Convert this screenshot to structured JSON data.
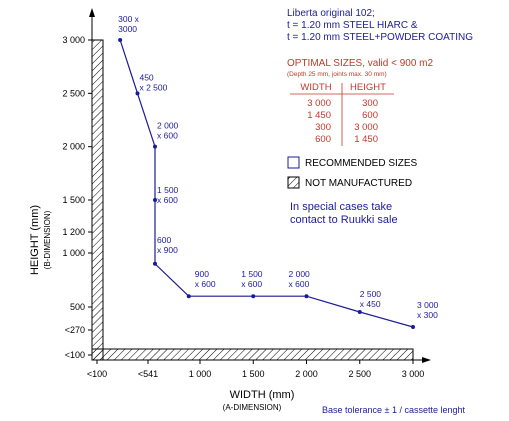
{
  "spec": {
    "lines": [
      "Liberta original 102;",
      "t = 1.20 mm STEEL HIARC &",
      "t = 1.20 mm STEEL+POWDER COATING"
    ]
  },
  "optimal": {
    "title": "OPTIMAL SIZES, valid < 900 m2",
    "note": "(Depth 25 mm, joints max. 30 mm)",
    "headers": [
      "WIDTH",
      "HEIGHT"
    ],
    "rows": [
      [
        "3 000",
        "300"
      ],
      [
        "1 450",
        "600"
      ],
      [
        "300",
        "3 000"
      ],
      [
        "600",
        "1 450"
      ]
    ]
  },
  "legend": {
    "recommended": "RECOMMENDED SIZES",
    "not_manufactured": "NOT MANUFACTURED"
  },
  "special": [
    "In special cases take",
    "contact to Ruukki sale"
  ],
  "tolerance": "Base tolerance ± 1 / cassette lenght",
  "colors": {
    "line": "#1b1b9a",
    "optimal": "#c0392b",
    "axis": "#000000"
  },
  "chart_data": {
    "type": "line",
    "xlabel": "WIDTH (mm)",
    "xlabel_sub": "(A-DIMENSION)",
    "ylabel": "HEIGHT (mm)",
    "ylabel_sub": "(B-DIMENSION)",
    "x_ticks": [
      {
        "label": "<100",
        "value": 100
      },
      {
        "label": "<541",
        "value": 541
      },
      {
        "label": "1 000",
        "value": 1000
      },
      {
        "label": "1 500",
        "value": 1500
      },
      {
        "label": "2 000",
        "value": 2000
      },
      {
        "label": "2 500",
        "value": 2500
      },
      {
        "label": "3 000",
        "value": 3000
      }
    ],
    "y_ticks": [
      {
        "label": "3 000",
        "value": 3000
      },
      {
        "label": "2 500",
        "value": 2500
      },
      {
        "label": "2 000",
        "value": 2000
      },
      {
        "label": "1 500",
        "value": 1500
      },
      {
        "label": "1 200",
        "value": 1200
      },
      {
        "label": "1 000",
        "value": 1000
      },
      {
        "label": "500",
        "value": 500
      },
      {
        "label": "<270",
        "value": 270
      },
      {
        "label": "<100",
        "value": 100
      }
    ],
    "xlim": [
      100,
      3000
    ],
    "ylim": [
      100,
      3000
    ],
    "points": [
      {
        "x": 300,
        "y": 3000,
        "label": [
          "300 x",
          "3000"
        ]
      },
      {
        "x": 450,
        "y": 2500,
        "label": [
          "450",
          "x 2 500"
        ]
      },
      {
        "x": 600,
        "y": 2000,
        "label": [
          "2 000",
          "x 600"
        ]
      },
      {
        "x": 600,
        "y": 1500,
        "label": [
          "1 500",
          "x 600"
        ]
      },
      {
        "x": 600,
        "y": 900,
        "label": [
          "600",
          "x 900"
        ]
      },
      {
        "x": 900,
        "y": 600,
        "label": [
          "900",
          "x 600"
        ]
      },
      {
        "x": 1500,
        "y": 600,
        "label": [
          "1 500",
          "x 600"
        ]
      },
      {
        "x": 2000,
        "y": 600,
        "label": [
          "2 000",
          "x 600"
        ]
      },
      {
        "x": 2500,
        "y": 450,
        "label": [
          "2 500",
          "x 450"
        ]
      },
      {
        "x": 3000,
        "y": 300,
        "label": [
          "3 000",
          "x 300"
        ]
      }
    ]
  }
}
